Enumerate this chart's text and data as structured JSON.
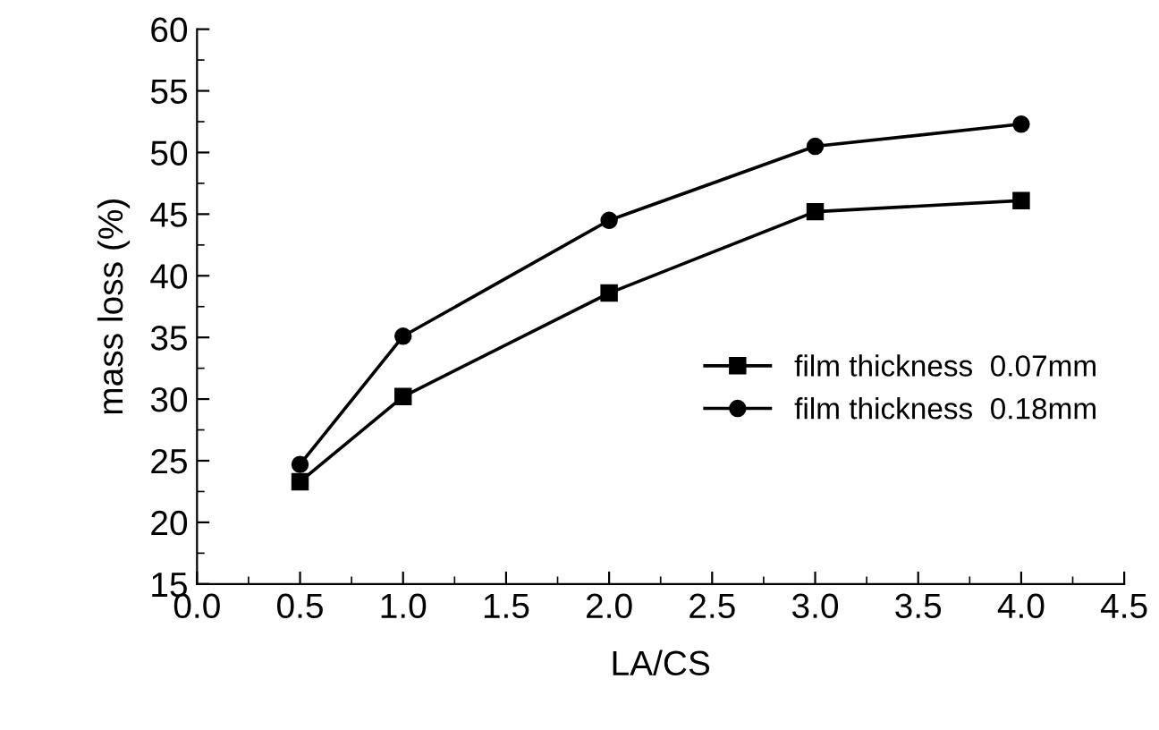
{
  "chart_data": {
    "type": "line",
    "xlabel": "LA/CS",
    "ylabel": "mass loss (%)",
    "x": [
      0.5,
      1.0,
      2.0,
      3.0,
      4.0
    ],
    "series": [
      {
        "name": "film thickness  0.07mm",
        "color": "#000000",
        "marker": "square",
        "values": [
          23.3,
          30.2,
          38.6,
          45.2,
          46.1
        ]
      },
      {
        "name": "film thickness  0.18mm",
        "color": "#000000",
        "marker": "circle",
        "values": [
          24.7,
          35.1,
          44.5,
          50.5,
          52.3
        ]
      }
    ],
    "xlim": [
      0,
      4.5
    ],
    "xticks": [
      {
        "value": 0,
        "label": "0.0"
      },
      0.5,
      {
        "value": 1,
        "label": "1.0"
      },
      1.5,
      {
        "value": 2,
        "label": "2.0"
      },
      2.5,
      {
        "value": 3,
        "label": "3.0"
      },
      3.5,
      {
        "value": 4,
        "label": "4.0"
      },
      4.5
    ],
    "ylim": [
      15,
      60
    ],
    "yticks": [
      15,
      20,
      25,
      30,
      35,
      40,
      45,
      50,
      55,
      60
    ],
    "legend": "right",
    "line_style": "solid",
    "grid": false
  }
}
